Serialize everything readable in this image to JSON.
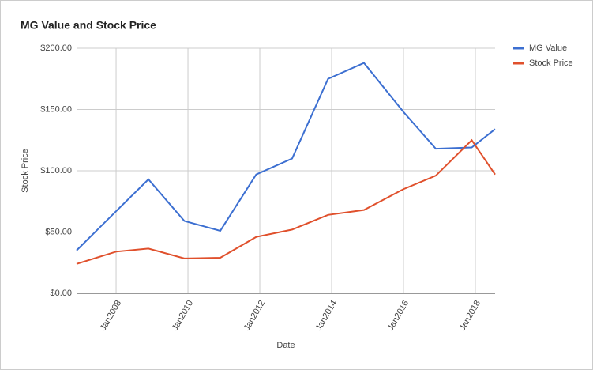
{
  "chart_data": {
    "type": "line",
    "title": "MG Value and Stock Price",
    "x_label": "Date",
    "y_label": "Stock Price",
    "x": [
      2006.9,
      2008.0,
      2008.9,
      2009.9,
      2010.9,
      2011.9,
      2012.9,
      2013.9,
      2014.9,
      2016.0,
      2016.9,
      2017.9,
      2018.55
    ],
    "series": [
      {
        "name": "MG Value",
        "color": "#3c6fd1",
        "values": [
          35,
          67,
          93,
          59,
          51,
          97,
          110,
          175,
          188,
          148,
          118,
          119,
          134
        ]
      },
      {
        "name": "Stock Price",
        "color": "#e0502c",
        "values": [
          24,
          34,
          36.5,
          28.5,
          29,
          46,
          52,
          64,
          68,
          85,
          96,
          125,
          97
        ]
      }
    ],
    "xlim": [
      2006.9,
      2018.55
    ],
    "xticks": [
      {
        "value": 2008,
        "label": "Jan2008"
      },
      {
        "value": 2010,
        "label": "Jan2010"
      },
      {
        "value": 2012,
        "label": "Jan2012"
      },
      {
        "value": 2014,
        "label": "Jan2014"
      },
      {
        "value": 2016,
        "label": "Jan2016"
      },
      {
        "value": 2018,
        "label": "Jan2018"
      }
    ],
    "ylim": [
      0,
      200
    ],
    "yticks": [
      {
        "value": 0,
        "label": "$0.00"
      },
      {
        "value": 50,
        "label": "$50.00"
      },
      {
        "value": 100,
        "label": "$100.00"
      },
      {
        "value": 150,
        "label": "$150.00"
      },
      {
        "value": 200,
        "label": "$200.00"
      }
    ],
    "grid": true,
    "legend": "right"
  }
}
